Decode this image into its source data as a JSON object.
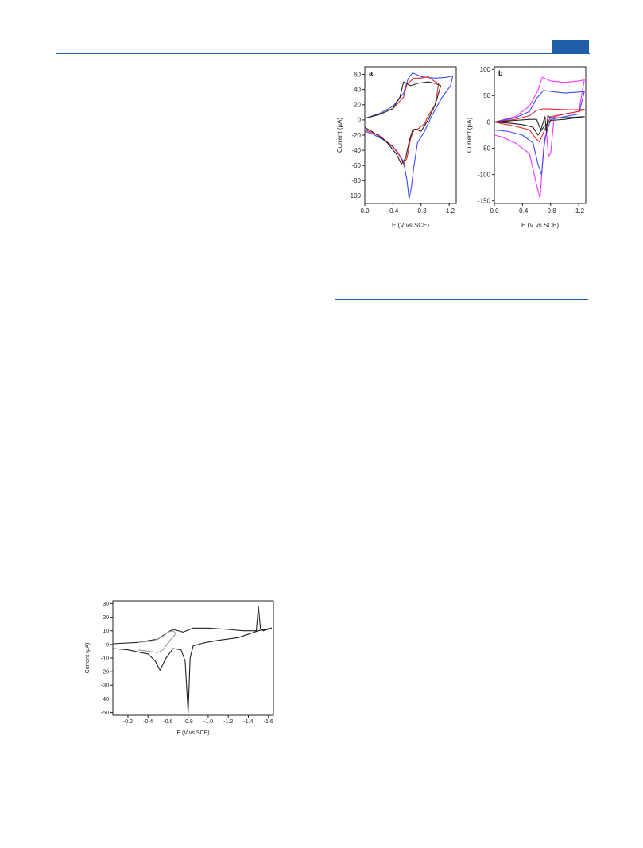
{
  "header": {
    "accent": "#1f5fa8"
  },
  "figures": [
    {
      "panel": "a",
      "chart_data": {
        "type": "line",
        "panel_label": "a",
        "xlabel": "E (V vs SCE)",
        "ylabel": "Current (µA)",
        "xlim": [
          0.0,
          -1.3
        ],
        "ylim": [
          -110,
          70
        ],
        "xticks": [
          0.0,
          -0.4,
          -0.8,
          -1.2
        ],
        "xtick_labels": [
          "0.0",
          "-0.4",
          "-0.8",
          "-1.2"
        ],
        "yticks": [
          60,
          40,
          20,
          0,
          -20,
          -40,
          -60,
          -80,
          -100
        ],
        "ytick_labels": [
          "60",
          "40",
          "20",
          "0",
          "-20",
          "-40",
          "-60",
          "-80",
          "-100"
        ],
        "grid": false,
        "series": [
          {
            "color": "#3b4bff",
            "x": [
              0.0,
              -0.2,
              -0.4,
              -0.55,
              -0.62,
              -0.68,
              -0.8,
              -1.0,
              -1.15,
              -1.25,
              -1.25,
              -1.22,
              -1.1,
              -0.95,
              -0.85,
              -0.75,
              -0.7,
              -0.66,
              -0.63,
              -0.6,
              -0.55,
              -0.45,
              -0.3,
              -0.1,
              0.0
            ],
            "y": [
              2,
              8,
              18,
              35,
              55,
              62,
              57,
              55,
              56,
              58,
              58,
              45,
              30,
              5,
              -15,
              -30,
              -60,
              -90,
              -104,
              -80,
              -55,
              -40,
              -28,
              -18,
              -15
            ]
          },
          {
            "color": "#e8262a",
            "x": [
              0.0,
              -0.2,
              -0.4,
              -0.55,
              -0.6,
              -0.7,
              -0.8,
              -0.9,
              -1.0,
              -1.05,
              -1.0,
              -0.9,
              -0.85,
              -0.75,
              -0.7,
              -0.65,
              -0.6,
              -0.55,
              -0.5,
              -0.4,
              -0.2,
              0.0
            ],
            "y": [
              2,
              7,
              15,
              30,
              47,
              55,
              55,
              57,
              50,
              48,
              20,
              5,
              -5,
              -12,
              -13,
              -25,
              -50,
              -58,
              -48,
              -35,
              -20,
              -13
            ]
          },
          {
            "color": "#222222",
            "x": [
              0.0,
              -0.2,
              -0.4,
              -0.5,
              -0.55,
              -0.65,
              -0.75,
              -0.9,
              -1.0,
              -1.08,
              -1.0,
              -0.9,
              -0.8,
              -0.72,
              -0.68,
              -0.64,
              -0.58,
              -0.52,
              -0.45,
              -0.3,
              -0.1,
              0.0
            ],
            "y": [
              2,
              7,
              15,
              30,
              50,
              45,
              48,
              50,
              48,
              45,
              20,
              0,
              -15,
              -12,
              -13,
              -25,
              -50,
              -58,
              -45,
              -28,
              -15,
              -10
            ]
          }
        ]
      }
    },
    {
      "panel": "b",
      "chart_data": {
        "type": "line",
        "panel_label": "b",
        "xlabel": "E (V vs SCE)",
        "ylabel": "Current (µA)",
        "xlim": [
          0.0,
          -1.3
        ],
        "ylim": [
          -155,
          105
        ],
        "xticks": [
          0.0,
          -0.4,
          -0.8,
          -1.2
        ],
        "xtick_labels": [
          "0.0",
          "-0.4",
          "-0.8",
          "-1.2"
        ],
        "yticks": [
          100,
          50,
          0,
          -50,
          -100,
          -150
        ],
        "ytick_labels": [
          "100",
          "50",
          "0",
          "-50",
          "-100",
          "-150"
        ],
        "grid": false,
        "series": [
          {
            "color": "#ff33ff",
            "x": [
              0.0,
              -0.3,
              -0.5,
              -0.62,
              -0.68,
              -0.8,
              -1.0,
              -1.2,
              -1.28,
              -1.28,
              -1.2,
              -1.0,
              -0.85,
              -0.8,
              -0.77,
              -0.74,
              -0.7,
              -0.65,
              -0.6,
              -0.5,
              -0.3,
              -0.1,
              0.0
            ],
            "y": [
              0,
              10,
              30,
              60,
              85,
              78,
              75,
              78,
              80,
              80,
              20,
              15,
              10,
              -60,
              -65,
              -20,
              -50,
              -145,
              -120,
              -60,
              -40,
              -28,
              -25
            ]
          },
          {
            "color": "#3b4bff",
            "x": [
              0.0,
              -0.3,
              -0.5,
              -0.6,
              -0.7,
              -0.8,
              -1.0,
              -1.2,
              -1.28,
              -1.2,
              -1.0,
              -0.8,
              -0.72,
              -0.67,
              -0.62,
              -0.55,
              -0.4,
              -0.2,
              0.0
            ],
            "y": [
              0,
              8,
              20,
              45,
              60,
              58,
              55,
              57,
              58,
              15,
              10,
              5,
              -30,
              -100,
              -80,
              -40,
              -25,
              -18,
              -15
            ]
          },
          {
            "color": "#e8262a",
            "x": [
              0.0,
              -0.3,
              -0.5,
              -0.6,
              -0.7,
              -0.9,
              -1.1,
              -1.28,
              -1.2,
              -1.0,
              -0.8,
              -0.7,
              -0.64,
              -0.58,
              -0.5,
              -0.3,
              -0.1,
              0.0
            ],
            "y": [
              0,
              5,
              12,
              22,
              25,
              24,
              23,
              24,
              20,
              15,
              10,
              -20,
              -38,
              -30,
              -15,
              -8,
              -3,
              0
            ]
          },
          {
            "color": "#222222",
            "x": [
              0.0,
              -0.3,
              -0.5,
              -0.6,
              -0.66,
              -0.72,
              -0.74,
              -0.76,
              -0.8,
              -1.0,
              -1.28,
              -1.0,
              -0.8,
              -0.7,
              -0.62,
              -0.55,
              -0.4,
              -0.2,
              0.0
            ],
            "y": [
              0,
              3,
              5,
              5,
              -15,
              10,
              -20,
              12,
              8,
              8,
              10,
              5,
              3,
              -10,
              -25,
              -10,
              -5,
              -2,
              0
            ]
          }
        ]
      }
    },
    {
      "panel": "c",
      "chart_data": {
        "type": "line",
        "panel_label": "",
        "xlabel": "E (V vs SCE)",
        "ylabel": "Current (µA)",
        "xlim": [
          -0.05,
          -1.65
        ],
        "ylim": [
          -52,
          32
        ],
        "xticks": [
          -0.2,
          -0.4,
          -0.6,
          -0.8,
          -1.0,
          -1.2,
          -1.4,
          -1.6
        ],
        "xtick_labels": [
          "-0.2",
          "-0.4",
          "-0.6",
          "-0.8",
          "-1.0",
          "-1.2",
          "-1.4",
          "-1.6"
        ],
        "yticks": [
          30,
          20,
          10,
          0,
          -10,
          -20,
          -30,
          -40,
          -50
        ],
        "ytick_labels": [
          "30",
          "20",
          "10",
          "0",
          "-10",
          "-20",
          "-30",
          "-40",
          "-50"
        ],
        "grid": false,
        "series": [
          {
            "color": "#222222",
            "x": [
              -0.05,
              -0.3,
              -0.5,
              -0.6,
              -0.65,
              -0.75,
              -0.85,
              -1.0,
              -1.2,
              -1.35,
              -1.48,
              -1.5,
              -1.52,
              -1.55,
              -1.63,
              -1.63,
              -1.5,
              -1.3,
              -1.1,
              -0.95,
              -0.85,
              -0.82,
              -0.8,
              -0.77,
              -0.73,
              -0.65,
              -0.58,
              -0.52,
              -0.47,
              -0.4,
              -0.2,
              -0.05
            ],
            "y": [
              0.5,
              1.5,
              4,
              9,
              11,
              9,
              12,
              12,
              11,
              10,
              10,
              28,
              12,
              10,
              12,
              12,
              10,
              5,
              3,
              1,
              -1,
              -10,
              -50,
              -12,
              -4,
              -3,
              -10,
              -19,
              -12,
              -7,
              -4,
              -3
            ]
          },
          {
            "color": "#999999",
            "x": [
              -0.3,
              -0.45,
              -0.55,
              -0.6,
              -0.65,
              -0.68,
              -0.63,
              -0.55,
              -0.5,
              -0.4,
              -0.3
            ],
            "y": [
              1.5,
              2.5,
              6,
              9,
              10,
              8,
              4,
              -4,
              -6,
              -5,
              -4
            ]
          }
        ]
      }
    }
  ]
}
